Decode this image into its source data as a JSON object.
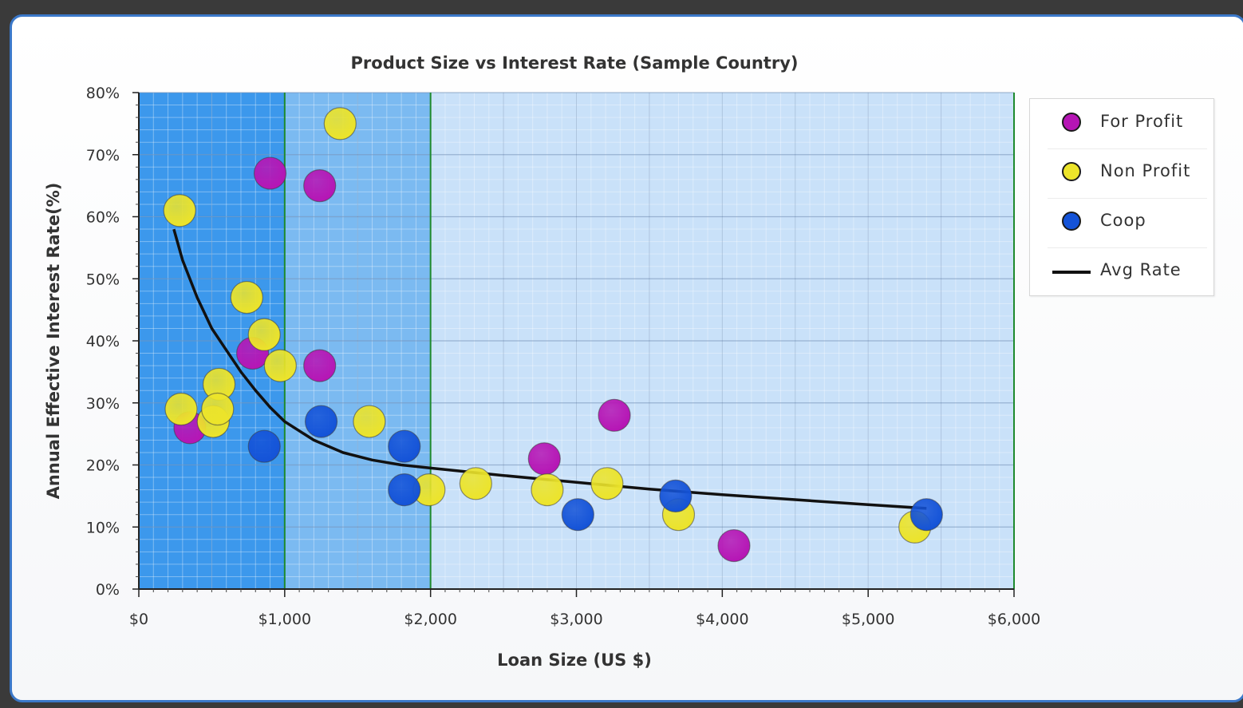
{
  "chart_data": {
    "type": "scatter",
    "title": "Product Size vs Interest Rate (Sample Country)",
    "xlabel": "Loan Size (US $)",
    "ylabel": "Annual Effective Interest Rate(%)",
    "xlim": [
      0,
      6000
    ],
    "ylim": [
      0,
      80
    ],
    "x_ticks": [
      "$0",
      "$1,000",
      "$2,000",
      "$3,000",
      "$4,000",
      "$5,000",
      "$6,000"
    ],
    "y_ticks": [
      "0%",
      "10%",
      "20%",
      "30%",
      "40%",
      "50%",
      "60%",
      "70%",
      "80%"
    ],
    "grid": true,
    "legend_position": "right",
    "bands": [
      {
        "from": 0,
        "to": 1000,
        "color": "#3c98ec"
      },
      {
        "from": 1000,
        "to": 2000,
        "color": "#7bbaf1"
      },
      {
        "from": 2000,
        "to": 6000,
        "color": "#c9e1f9"
      }
    ],
    "series": [
      {
        "name": "For Profit",
        "kind": "points",
        "color": "#b615b5",
        "x": [
          350,
          780,
          900,
          1240,
          1240,
          2780,
          3260,
          4080
        ],
        "y": [
          26,
          38,
          67,
          65,
          36,
          21,
          28,
          7
        ]
      },
      {
        "name": "Non Profit",
        "kind": "points",
        "color": "#ece42a",
        "x": [
          280,
          290,
          510,
          550,
          540,
          740,
          860,
          970,
          1380,
          1580,
          1990,
          2310,
          2800,
          3210,
          3700,
          5320
        ],
        "y": [
          61,
          29,
          27,
          33,
          29,
          47,
          41,
          36,
          75,
          27,
          16,
          17,
          16,
          17,
          12,
          10
        ]
      },
      {
        "name": "Coop",
        "kind": "points",
        "color": "#1453d8",
        "x": [
          860,
          1250,
          1820,
          1820,
          3010,
          3680,
          5400
        ],
        "y": [
          23,
          27,
          23,
          16,
          12,
          15,
          12
        ]
      },
      {
        "name": "Avg Rate",
        "kind": "line",
        "color": "#111111",
        "x": [
          240,
          300,
          400,
          500,
          600,
          700,
          800,
          900,
          1000,
          1200,
          1400,
          1600,
          1800,
          2000,
          2500,
          3000,
          3500,
          4000,
          4500,
          5000,
          5400
        ],
        "y": [
          58,
          53,
          47,
          42,
          38.5,
          35,
          32,
          29.3,
          27,
          24,
          22,
          20.8,
          20,
          19.5,
          18.3,
          17.2,
          16.1,
          15.2,
          14.4,
          13.6,
          13
        ]
      }
    ]
  },
  "legend": {
    "items": [
      {
        "label": "For Profit",
        "color": "#b615b5",
        "kind": "dot"
      },
      {
        "label": "Non Profit",
        "color": "#ece42a",
        "kind": "dot"
      },
      {
        "label": "Coop",
        "color": "#1453d8",
        "kind": "dot"
      },
      {
        "label": "Avg Rate",
        "color": "#111111",
        "kind": "line"
      }
    ]
  }
}
